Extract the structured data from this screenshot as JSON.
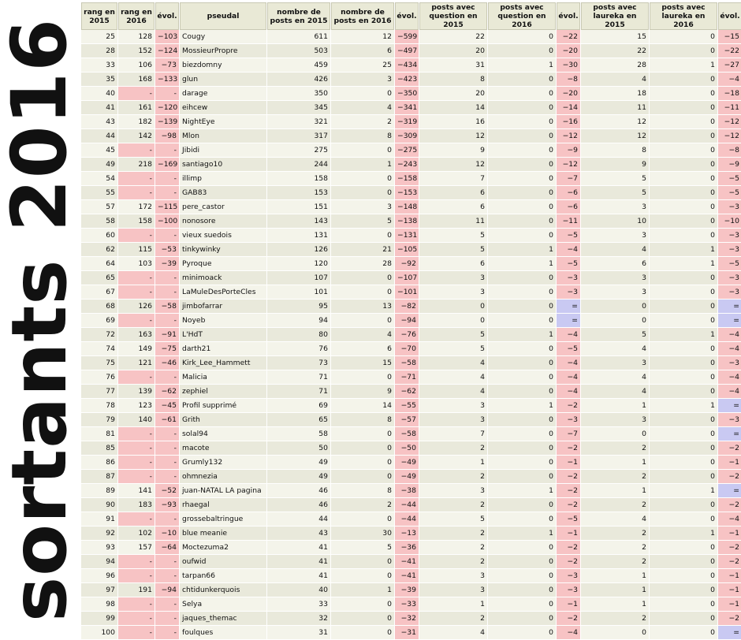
{
  "side_title": "sortants 2016",
  "headers": [
    "rang en 2015",
    "rang en 2016",
    "évol.",
    "pseudal",
    "nombre de posts en 2015",
    "nombre de posts en 2016",
    "évol.",
    "posts avec question en 2015",
    "posts avec question en 2016",
    "évol.",
    "posts avec laureka en 2015",
    "posts avec laureka en 2016",
    "évol."
  ],
  "rows": [
    [
      "25",
      "128",
      "−103",
      "Cougy",
      "611",
      "12",
      "−599",
      "22",
      "0",
      "−22",
      "15",
      "0",
      "−15"
    ],
    [
      "28",
      "152",
      "−124",
      "MossieurPropre",
      "503",
      "6",
      "−497",
      "20",
      "0",
      "−20",
      "22",
      "0",
      "−22"
    ],
    [
      "33",
      "106",
      "−73",
      "biezdomny",
      "459",
      "25",
      "−434",
      "31",
      "1",
      "−30",
      "28",
      "1",
      "−27"
    ],
    [
      "35",
      "168",
      "−133",
      "glun",
      "426",
      "3",
      "−423",
      "8",
      "0",
      "−8",
      "4",
      "0",
      "−4"
    ],
    [
      "40",
      "-",
      "-",
      "darage",
      "350",
      "0",
      "−350",
      "20",
      "0",
      "−20",
      "18",
      "0",
      "−18"
    ],
    [
      "41",
      "161",
      "−120",
      "eihcew",
      "345",
      "4",
      "−341",
      "14",
      "0",
      "−14",
      "11",
      "0",
      "−11"
    ],
    [
      "43",
      "182",
      "−139",
      "NightEye",
      "321",
      "2",
      "−319",
      "16",
      "0",
      "−16",
      "12",
      "0",
      "−12"
    ],
    [
      "44",
      "142",
      "−98",
      "Mlon",
      "317",
      "8",
      "−309",
      "12",
      "0",
      "−12",
      "12",
      "0",
      "−12"
    ],
    [
      "45",
      "-",
      "-",
      "Jibidi",
      "275",
      "0",
      "−275",
      "9",
      "0",
      "−9",
      "8",
      "0",
      "−8"
    ],
    [
      "49",
      "218",
      "−169",
      "santiago10",
      "244",
      "1",
      "−243",
      "12",
      "0",
      "−12",
      "9",
      "0",
      "−9"
    ],
    [
      "54",
      "-",
      "-",
      "illimp",
      "158",
      "0",
      "−158",
      "7",
      "0",
      "−7",
      "5",
      "0",
      "−5"
    ],
    [
      "55",
      "-",
      "-",
      "GAB83",
      "153",
      "0",
      "−153",
      "6",
      "0",
      "−6",
      "5",
      "0",
      "−5"
    ],
    [
      "57",
      "172",
      "−115",
      "pere_castor",
      "151",
      "3",
      "−148",
      "6",
      "0",
      "−6",
      "3",
      "0",
      "−3"
    ],
    [
      "58",
      "158",
      "−100",
      "nonosore",
      "143",
      "5",
      "−138",
      "11",
      "0",
      "−11",
      "10",
      "0",
      "−10"
    ],
    [
      "60",
      "-",
      "-",
      "vieux suedois",
      "131",
      "0",
      "−131",
      "5",
      "0",
      "−5",
      "3",
      "0",
      "−3"
    ],
    [
      "62",
      "115",
      "−53",
      "tinkywinky",
      "126",
      "21",
      "−105",
      "5",
      "1",
      "−4",
      "4",
      "1",
      "−3"
    ],
    [
      "64",
      "103",
      "−39",
      "Pyroque",
      "120",
      "28",
      "−92",
      "6",
      "1",
      "−5",
      "6",
      "1",
      "−5"
    ],
    [
      "65",
      "-",
      "-",
      "minimoack",
      "107",
      "0",
      "−107",
      "3",
      "0",
      "−3",
      "3",
      "0",
      "−3"
    ],
    [
      "67",
      "-",
      "-",
      "LaMuleDesPorteCles",
      "101",
      "0",
      "−101",
      "3",
      "0",
      "−3",
      "3",
      "0",
      "−3"
    ],
    [
      "68",
      "126",
      "−58",
      "jimbofarrar",
      "95",
      "13",
      "−82",
      "0",
      "0",
      "=",
      "0",
      "0",
      "="
    ],
    [
      "69",
      "-",
      "-",
      "Noyeb",
      "94",
      "0",
      "−94",
      "0",
      "0",
      "=",
      "0",
      "0",
      "="
    ],
    [
      "72",
      "163",
      "−91",
      "L'HdT",
      "80",
      "4",
      "−76",
      "5",
      "1",
      "−4",
      "5",
      "1",
      "−4"
    ],
    [
      "74",
      "149",
      "−75",
      "darth21",
      "76",
      "6",
      "−70",
      "5",
      "0",
      "−5",
      "4",
      "0",
      "−4"
    ],
    [
      "75",
      "121",
      "−46",
      "Kirk_Lee_Hammett",
      "73",
      "15",
      "−58",
      "4",
      "0",
      "−4",
      "3",
      "0",
      "−3"
    ],
    [
      "76",
      "-",
      "-",
      "Malicia",
      "71",
      "0",
      "−71",
      "4",
      "0",
      "−4",
      "4",
      "0",
      "−4"
    ],
    [
      "77",
      "139",
      "−62",
      "zephiel",
      "71",
      "9",
      "−62",
      "4",
      "0",
      "−4",
      "4",
      "0",
      "−4"
    ],
    [
      "78",
      "123",
      "−45",
      "Profil supprimé",
      "69",
      "14",
      "−55",
      "3",
      "1",
      "−2",
      "1",
      "1",
      "="
    ],
    [
      "79",
      "140",
      "−61",
      "Grith",
      "65",
      "8",
      "−57",
      "3",
      "0",
      "−3",
      "3",
      "0",
      "−3"
    ],
    [
      "81",
      "-",
      "-",
      "solal94",
      "58",
      "0",
      "−58",
      "7",
      "0",
      "−7",
      "0",
      "0",
      "="
    ],
    [
      "85",
      "-",
      "-",
      "macote",
      "50",
      "0",
      "−50",
      "2",
      "0",
      "−2",
      "2",
      "0",
      "−2"
    ],
    [
      "86",
      "-",
      "-",
      "Grumly132",
      "49",
      "0",
      "−49",
      "1",
      "0",
      "−1",
      "1",
      "0",
      "−1"
    ],
    [
      "87",
      "-",
      "-",
      "ohmnezia",
      "49",
      "0",
      "−49",
      "2",
      "0",
      "−2",
      "2",
      "0",
      "−2"
    ],
    [
      "89",
      "141",
      "−52",
      "juan-NATAL LA pagina",
      "46",
      "8",
      "−38",
      "3",
      "1",
      "−2",
      "1",
      "1",
      "="
    ],
    [
      "90",
      "183",
      "−93",
      "rhaegal",
      "46",
      "2",
      "−44",
      "2",
      "0",
      "−2",
      "2",
      "0",
      "−2"
    ],
    [
      "91",
      "-",
      "-",
      "grossebaltringue",
      "44",
      "0",
      "−44",
      "5",
      "0",
      "−5",
      "4",
      "0",
      "−4"
    ],
    [
      "92",
      "102",
      "−10",
      "blue meanie",
      "43",
      "30",
      "−13",
      "2",
      "1",
      "−1",
      "2",
      "1",
      "−1"
    ],
    [
      "93",
      "157",
      "−64",
      "Moctezuma2",
      "41",
      "5",
      "−36",
      "2",
      "0",
      "−2",
      "2",
      "0",
      "−2"
    ],
    [
      "94",
      "-",
      "-",
      "oufwid",
      "41",
      "0",
      "−41",
      "2",
      "0",
      "−2",
      "2",
      "0",
      "−2"
    ],
    [
      "96",
      "-",
      "-",
      "tarpan66",
      "41",
      "0",
      "−41",
      "3",
      "0",
      "−3",
      "1",
      "0",
      "−1"
    ],
    [
      "97",
      "191",
      "−94",
      "chtidunkerquois",
      "40",
      "1",
      "−39",
      "3",
      "0",
      "−3",
      "1",
      "0",
      "−1"
    ],
    [
      "98",
      "-",
      "-",
      "Selya",
      "33",
      "0",
      "−33",
      "1",
      "0",
      "−1",
      "1",
      "0",
      "−1"
    ],
    [
      "99",
      "-",
      "-",
      "jaques_themac",
      "32",
      "0",
      "−32",
      "2",
      "0",
      "−2",
      "2",
      "0",
      "−2"
    ],
    [
      "100",
      "-",
      "-",
      "foulques",
      "31",
      "0",
      "−31",
      "4",
      "0",
      "−4",
      "0",
      "0",
      "="
    ]
  ]
}
